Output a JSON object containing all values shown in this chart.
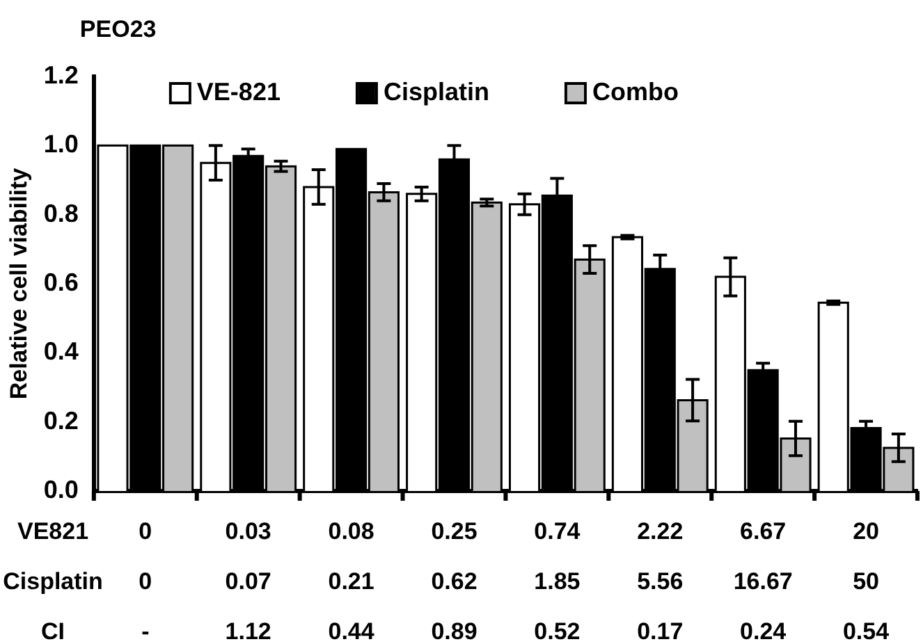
{
  "chart_data": {
    "type": "bar",
    "title": "PEO23",
    "ylabel": "Relative cell viability",
    "categories": [
      "0",
      "0.03",
      "0.08",
      "0.25",
      "0.74",
      "2.22",
      "6.67",
      "20"
    ],
    "series": [
      {
        "name": "VE-821",
        "color": "#ffffff",
        "values": [
          1.0,
          0.95,
          0.88,
          0.86,
          0.83,
          0.735,
          0.62,
          0.545
        ],
        "errors": [
          null,
          0.05,
          0.05,
          0.02,
          0.03,
          0.005,
          0.055,
          0.005
        ]
      },
      {
        "name": "Cisplatin",
        "color": "#000000",
        "values": [
          1.0,
          0.97,
          0.99,
          0.96,
          0.855,
          0.643,
          0.35,
          0.182
        ],
        "errors": [
          null,
          0.02,
          null,
          0.04,
          0.05,
          0.04,
          0.02,
          0.02
        ]
      },
      {
        "name": "Combo",
        "color": "#c0c0c0",
        "values": [
          1.0,
          0.94,
          0.865,
          0.835,
          0.67,
          0.263,
          0.152,
          0.125
        ],
        "errors": [
          null,
          0.015,
          0.025,
          0.01,
          0.04,
          0.06,
          0.05,
          0.04
        ]
      }
    ],
    "ylim": [
      0,
      1.2
    ],
    "yticks": [
      {
        "value": 0,
        "label": "0.0"
      },
      {
        "value": 0.2,
        "label": "0.2"
      },
      {
        "value": 0.4,
        "label": "0.4"
      },
      {
        "value": 0.6,
        "label": "0.6"
      },
      {
        "value": 0.8,
        "label": "0.8"
      },
      {
        "value": 1,
        "label": "1.0"
      },
      {
        "value": 1.2,
        "label": "1.2"
      }
    ],
    "grid": false,
    "legend": "top",
    "annotations": [
      "VE821",
      "Cisplatin",
      "CI",
      "0",
      "0.07",
      "0.21",
      "0.62",
      "1.85",
      "5.56",
      "16.67",
      "50",
      "-",
      "1.12",
      "0.44",
      "0.89",
      "0.52",
      "0.17",
      "0.24",
      "0.54"
    ]
  }
}
